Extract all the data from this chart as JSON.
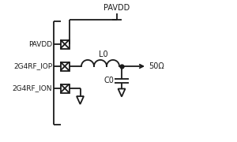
{
  "bg_color": "#ffffff",
  "line_color": "#1a1a1a",
  "text_color": "#1a1a1a",
  "labels": {
    "pavdd_pin": "PAVDD",
    "iop_pin": "2G4RF_IOP",
    "ion_pin": "2G4RF_ION",
    "pavdd_supply": "PAVDD",
    "inductor": "L0",
    "capacitor": "C0",
    "load": "50Ω"
  },
  "figsize": [
    3.0,
    1.8
  ],
  "dpi": 100
}
